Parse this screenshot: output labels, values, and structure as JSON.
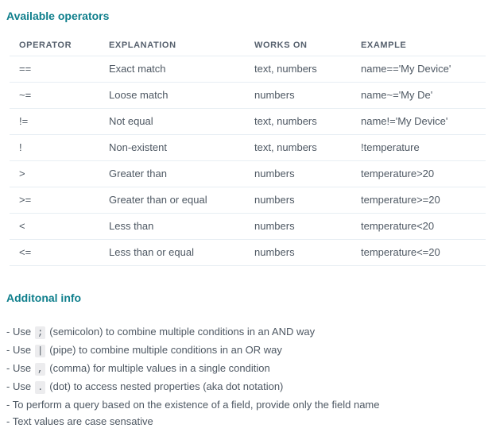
{
  "theme": {
    "accent": "#0f7f8c",
    "text": "#4e5863",
    "header-text": "#57616e",
    "border": "#e7eef3",
    "code-bg": "#ececee",
    "bg": "#ffffff"
  },
  "sections": {
    "operators": {
      "title": "Available operators",
      "table": {
        "headers": [
          "OPERATOR",
          "EXPLANATION",
          "WORKS ON",
          "EXAMPLE"
        ],
        "rows": [
          {
            "operator": "==",
            "explanation": "Exact match",
            "works_on": "text, numbers",
            "example": "name=='My Device'"
          },
          {
            "operator": "~=",
            "explanation": "Loose match",
            "works_on": "numbers",
            "example": "name~='My De'"
          },
          {
            "operator": "!=",
            "explanation": "Not equal",
            "works_on": "text, numbers",
            "example": "name!='My Device'"
          },
          {
            "operator": "!",
            "explanation": "Non-existent",
            "works_on": "text, numbers",
            "example": "!temperature"
          },
          {
            "operator": ">",
            "explanation": "Greater than",
            "works_on": "numbers",
            "example": "temperature>20"
          },
          {
            "operator": ">=",
            "explanation": "Greater than or equal",
            "works_on": "numbers",
            "example": "temperature>=20"
          },
          {
            "operator": "<",
            "explanation": "Less than",
            "works_on": "numbers",
            "example": "temperature<20"
          },
          {
            "operator": "<=",
            "explanation": "Less than or equal",
            "works_on": "numbers",
            "example": "temperature<=20"
          }
        ]
      }
    },
    "additional": {
      "title": "Additonal info",
      "notes": [
        {
          "prefix": "- Use",
          "code": ";",
          "suffix": "(semicolon) to combine multiple conditions in an AND way"
        },
        {
          "prefix": "- Use",
          "code": "|",
          "suffix": "(pipe) to combine multiple conditions in an OR way"
        },
        {
          "prefix": "- Use",
          "code": ",",
          "suffix": "(comma) for multiple values in a single condition"
        },
        {
          "prefix": "- Use",
          "code": ".",
          "suffix": "(dot) to access nested properties (aka dot notation)"
        },
        {
          "prefix": "- To perform a query based on the existence of a field, provide only the field name",
          "code": "",
          "suffix": ""
        },
        {
          "prefix": "- Text values are case sensative",
          "code": "",
          "suffix": ""
        }
      ]
    }
  }
}
